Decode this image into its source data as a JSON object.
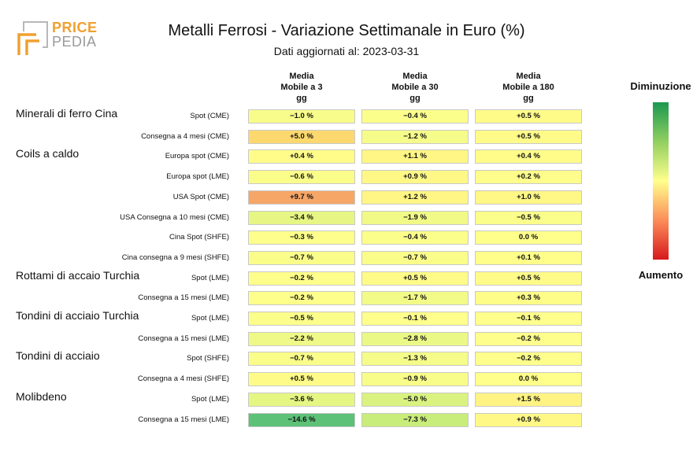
{
  "logo": {
    "line1": "PRICE",
    "line2": "PEDIA"
  },
  "header": {
    "title": "Metalli Ferrosi - Variazione Settimanale in Euro (%)",
    "subtitle": "Dati aggiornati al: 2023-03-31"
  },
  "legend": {
    "top": "Diminuzione",
    "bottom": "Aumento",
    "colors": [
      "#1a9850",
      "#91cf60",
      "#ffff8c",
      "#fc8d59",
      "#d7191c"
    ]
  },
  "chart_data": {
    "type": "heatmap",
    "title": "Metalli Ferrosi - Variazione Settimanale in Euro (%)",
    "columns": [
      [
        "Media",
        "Mobile a 3",
        "gg"
      ],
      [
        "Media",
        "Mobile a 30",
        "gg"
      ],
      [
        "Media",
        "Mobile a 180",
        "gg"
      ]
    ],
    "groups": [
      "Minerali di ferro Cina",
      "Coils a caldo",
      "Rottami di accaio Turchia",
      "Tondini di acciaio Turchia",
      "Tondini di acciaio",
      "Molibdeno"
    ],
    "rows": [
      {
        "group": 0,
        "label": "Spot (CME)",
        "values": [
          -1.0,
          -0.4,
          0.5
        ],
        "text": [
          "−1.0 %",
          "−0.4 %",
          "+0.5 %"
        ]
      },
      {
        "group": -1,
        "label": "Consegna a 4 mesi (CME)",
        "values": [
          5.0,
          -1.2,
          0.5
        ],
        "text": [
          "+5.0 %",
          "−1.2 %",
          "+0.5 %"
        ]
      },
      {
        "group": 1,
        "label": "Europa spot (CME)",
        "values": [
          0.4,
          1.1,
          0.4
        ],
        "text": [
          "+0.4 %",
          "+1.1 %",
          "+0.4 %"
        ]
      },
      {
        "group": -1,
        "label": "Europa spot (LME)",
        "values": [
          -0.6,
          0.9,
          0.2
        ],
        "text": [
          "−0.6 %",
          "+0.9 %",
          "+0.2 %"
        ]
      },
      {
        "group": -1,
        "label": "USA Spot (CME)",
        "values": [
          9.7,
          1.2,
          1.0
        ],
        "text": [
          "+9.7 %",
          "+1.2 %",
          "+1.0 %"
        ]
      },
      {
        "group": -1,
        "label": "USA Consegna a 10 mesi (CME)",
        "values": [
          -3.4,
          -1.9,
          -0.5
        ],
        "text": [
          "−3.4 %",
          "−1.9 %",
          "−0.5 %"
        ]
      },
      {
        "group": -1,
        "label": "Cina Spot (SHFE)",
        "values": [
          -0.3,
          -0.4,
          0.0
        ],
        "text": [
          "−0.3 %",
          "−0.4 %",
          "0.0 %"
        ]
      },
      {
        "group": -1,
        "label": "Cina consegna a 9 mesi (SHFE)",
        "values": [
          -0.7,
          -0.7,
          0.1
        ],
        "text": [
          "−0.7 %",
          "−0.7 %",
          "+0.1 %"
        ]
      },
      {
        "group": 2,
        "label": "Spot (LME)",
        "values": [
          -0.2,
          0.5,
          0.5
        ],
        "text": [
          "−0.2 %",
          "+0.5 %",
          "+0.5 %"
        ]
      },
      {
        "group": -1,
        "label": "Consegna a 15 mesi (LME)",
        "values": [
          -0.2,
          -1.7,
          0.3
        ],
        "text": [
          "−0.2 %",
          "−1.7 %",
          "+0.3 %"
        ]
      },
      {
        "group": 3,
        "label": "Spot (LME)",
        "values": [
          -0.5,
          -0.1,
          -0.1
        ],
        "text": [
          "−0.5 %",
          "−0.1 %",
          "−0.1 %"
        ]
      },
      {
        "group": -1,
        "label": "Consegna a 15 mesi (LME)",
        "values": [
          -2.2,
          -2.8,
          -0.2
        ],
        "text": [
          "−2.2 %",
          "−2.8 %",
          "−0.2 %"
        ]
      },
      {
        "group": 4,
        "label": "Spot (SHFE)",
        "values": [
          -0.7,
          -1.3,
          -0.2
        ],
        "text": [
          "−0.7 %",
          "−1.3 %",
          "−0.2 %"
        ]
      },
      {
        "group": -1,
        "label": "Consegna a 4 mesi (SHFE)",
        "values": [
          0.5,
          -0.9,
          0.0
        ],
        "text": [
          "+0.5 %",
          "−0.9 %",
          "0.0 %"
        ]
      },
      {
        "group": 5,
        "label": "Spot (LME)",
        "values": [
          -3.6,
          -5.0,
          1.5
        ],
        "text": [
          "−3.6 %",
          "−5.0 %",
          "+1.5 %"
        ]
      },
      {
        "group": -1,
        "label": "Consegna a 15 mesi (LME)",
        "values": [
          -14.6,
          -7.3,
          0.9
        ],
        "text": [
          "−14.6 %",
          "−7.3 %",
          "+0.9 %"
        ]
      }
    ]
  }
}
